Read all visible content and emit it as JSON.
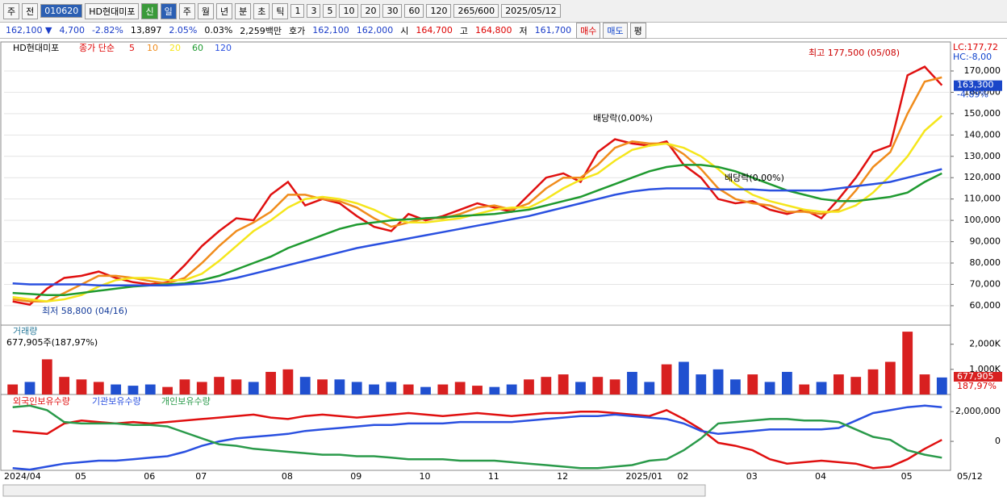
{
  "toolbar": {
    "buttons": [
      "주",
      "전"
    ],
    "code": "010620",
    "name": "HD현대미포",
    "tag": "신",
    "periods": [
      "일",
      "주",
      "월",
      "년",
      "분",
      "초",
      "틱"
    ],
    "intervals": [
      "1",
      "3",
      "5",
      "10",
      "20",
      "30",
      "60",
      "120"
    ],
    "count": "265/600",
    "date": "2025/05/12"
  },
  "quote": {
    "items": [
      "162,100 ▼",
      "4,700",
      "-2.82%",
      "13,897",
      "2.05%",
      "0.03%",
      "2,259백만",
      "호가",
      "162,100",
      "162,000",
      "시",
      "164,700",
      "고",
      "164,800",
      "저",
      "161,700"
    ],
    "buttons": [
      "매수",
      "매도",
      "평"
    ]
  },
  "chart_data": [
    {
      "type": "line",
      "title": "HD현대미포",
      "subtitle": "종가 단순",
      "categories": [
        "2024/04",
        null,
        null,
        null,
        "05",
        null,
        null,
        null,
        "06",
        null,
        null,
        "07",
        null,
        null,
        null,
        null,
        "08",
        null,
        null,
        null,
        "09",
        null,
        null,
        null,
        "10",
        null,
        null,
        null,
        "11",
        null,
        null,
        null,
        "12",
        null,
        null,
        null,
        "2025/01",
        null,
        null,
        "02",
        null,
        null,
        null,
        "03",
        null,
        null,
        null,
        "04",
        null,
        null,
        null,
        null,
        "05",
        null,
        null
      ],
      "series": [
        {
          "name": "5",
          "color": "#e01010",
          "values": [
            62000,
            60500,
            68000,
            73000,
            74000,
            76000,
            73000,
            71000,
            70000,
            71000,
            79000,
            88000,
            95000,
            101000,
            100000,
            112000,
            118000,
            107000,
            110000,
            108000,
            102000,
            97000,
            95000,
            103000,
            100000,
            102000,
            105000,
            108000,
            106000,
            104000,
            112000,
            120000,
            122000,
            118000,
            132000,
            138000,
            136000,
            135000,
            137000,
            126000,
            120000,
            110000,
            108000,
            109000,
            105000,
            103000,
            105000,
            101000,
            110000,
            120000,
            132000,
            135000,
            168000,
            172000,
            163300
          ]
        },
        {
          "name": "10",
          "color": "#f08c1c",
          "values": [
            63000,
            62000,
            62000,
            66000,
            70000,
            74000,
            74000,
            73000,
            71500,
            70500,
            73000,
            80000,
            88000,
            95000,
            99000,
            104000,
            112000,
            112000,
            110000,
            109000,
            106000,
            101000,
            97000,
            99000,
            101000,
            101000,
            103000,
            106000,
            107000,
            105000,
            108000,
            115000,
            120000,
            120000,
            126000,
            134000,
            137000,
            136000,
            136000,
            131000,
            124000,
            115000,
            110000,
            108000,
            107000,
            104000,
            104000,
            103000,
            105000,
            114000,
            125000,
            132000,
            150000,
            165000,
            167000
          ]
        },
        {
          "name": "20",
          "color": "#f5e61c",
          "values": [
            64000,
            63000,
            62000,
            63000,
            65000,
            69000,
            72000,
            73000,
            73000,
            72000,
            72000,
            75000,
            81000,
            88000,
            95000,
            100000,
            106000,
            110000,
            111000,
            110000,
            108000,
            105000,
            101000,
            99000,
            99000,
            100000,
            101000,
            103000,
            105000,
            106000,
            106000,
            110000,
            115000,
            119000,
            122000,
            128000,
            133000,
            135000,
            136000,
            134000,
            130000,
            124000,
            117000,
            112000,
            109000,
            107000,
            105000,
            104000,
            104000,
            107000,
            113000,
            121000,
            130000,
            142000,
            149000
          ]
        },
        {
          "name": "60",
          "color": "#1f9a30",
          "values": [
            66000,
            65500,
            65000,
            65000,
            66000,
            67000,
            68000,
            69000,
            69500,
            70000,
            70500,
            72000,
            74000,
            77000,
            80000,
            83000,
            87000,
            90000,
            93000,
            96000,
            98000,
            99000,
            100000,
            100500,
            101000,
            101500,
            102000,
            102500,
            103000,
            104000,
            105000,
            107000,
            109000,
            111000,
            114000,
            117000,
            120000,
            123000,
            125000,
            126000,
            126000,
            125000,
            123000,
            120000,
            117000,
            114000,
            112000,
            110000,
            109000,
            109000,
            110000,
            111000,
            113000,
            118000,
            122000
          ]
        },
        {
          "name": "120",
          "color": "#2a50e0",
          "values": [
            70500,
            70000,
            70000,
            70000,
            70000,
            69500,
            69500,
            69500,
            69500,
            69500,
            70000,
            70500,
            71500,
            73000,
            75000,
            77000,
            79000,
            81000,
            83000,
            85000,
            87000,
            88500,
            90000,
            91500,
            93000,
            94500,
            96000,
            97500,
            99000,
            100500,
            102000,
            104000,
            106000,
            108000,
            110000,
            112000,
            113500,
            114500,
            115000,
            115000,
            115000,
            114500,
            114500,
            114500,
            114000,
            114000,
            114000,
            114000,
            115000,
            116000,
            117000,
            118000,
            120000,
            122000,
            124000
          ]
        }
      ],
      "ylim": [
        50900,
        183600
      ],
      "yticks": [
        {
          "value": 60000,
          "label": "60,000"
        },
        {
          "value": 70000,
          "label": "70,000"
        },
        {
          "value": 80000,
          "label": "80,000"
        },
        {
          "value": 90000,
          "label": "90,000"
        },
        {
          "value": 100000,
          "label": "100,000"
        },
        {
          "value": 110000,
          "label": "110,000"
        },
        {
          "value": 120000,
          "label": "120,000"
        },
        {
          "value": 130000,
          "label": "130,000"
        },
        {
          "value": 140000,
          "label": "140,000"
        },
        {
          "value": 150000,
          "label": "150,000"
        },
        {
          "value": 160000,
          "label": "160,000"
        },
        {
          "value": 170000,
          "label": "170,000"
        }
      ],
      "grid": true,
      "annotations": [
        {
          "text": "최고 177,500 (05/08)",
          "value": 177500
        },
        {
          "text": "최저 58,800 (04/16)",
          "value": 58800
        },
        {
          "text": "배당락(0,00%)"
        },
        {
          "text": "배당락(0,00%)"
        }
      ],
      "right_labels": [
        "LC:177,72",
        "HC:-8,00"
      ],
      "last_label": "163,300",
      "change_label": "-4.89%",
      "x_end_label": "05/12"
    },
    {
      "type": "bar",
      "title": "거래량",
      "subtitle": "677,905주(187,97%)",
      "values": [
        400000,
        500000,
        1400000,
        700000,
        600000,
        500000,
        400000,
        350000,
        400000,
        300000,
        600000,
        500000,
        700000,
        600000,
        500000,
        900000,
        1000000,
        700000,
        600000,
        600000,
        500000,
        400000,
        500000,
        400000,
        300000,
        400000,
        500000,
        350000,
        300000,
        400000,
        600000,
        700000,
        800000,
        500000,
        700000,
        600000,
        900000,
        500000,
        1200000,
        1300000,
        800000,
        1000000,
        600000,
        800000,
        500000,
        900000,
        400000,
        500000,
        800000,
        700000,
        1000000,
        1300000,
        2500000,
        800000,
        677905
      ],
      "up_color": "#d82020",
      "down_color": "#2050d0",
      "ylim": [
        0,
        2760000
      ],
      "yticks": [
        {
          "value": 1000000,
          "label": "1,000K"
        },
        {
          "value": 2000000,
          "label": "2,000K"
        }
      ],
      "last_label": "677,905",
      "ratio_label": "187,97%"
    },
    {
      "type": "line",
      "series": [
        {
          "name": "외국인보유수량",
          "color": "#e01010",
          "values": [
            700000,
            600000,
            500000,
            1200000,
            1400000,
            1300000,
            1200000,
            1300000,
            1200000,
            1300000,
            1400000,
            1500000,
            1600000,
            1700000,
            1800000,
            1600000,
            1500000,
            1700000,
            1800000,
            1700000,
            1600000,
            1700000,
            1800000,
            1900000,
            1800000,
            1700000,
            1800000,
            1900000,
            1800000,
            1700000,
            1800000,
            1900000,
            1900000,
            2000000,
            2000000,
            1900000,
            1800000,
            1700000,
            2100000,
            1500000,
            800000,
            -100000,
            -300000,
            -600000,
            -1200000,
            -1500000,
            -1400000,
            -1300000,
            -1400000,
            -1500000,
            -1800000,
            -1700000,
            -1200000,
            -500000,
            100000
          ]
        },
        {
          "name": "기관보유수량",
          "color": "#2a50e0",
          "values": [
            -1800000,
            -1900000,
            -1700000,
            -1500000,
            -1400000,
            -1300000,
            -1300000,
            -1200000,
            -1100000,
            -1000000,
            -700000,
            -300000,
            0,
            200000,
            300000,
            400000,
            500000,
            700000,
            800000,
            900000,
            1000000,
            1100000,
            1100000,
            1200000,
            1200000,
            1200000,
            1300000,
            1300000,
            1300000,
            1300000,
            1400000,
            1500000,
            1600000,
            1700000,
            1700000,
            1800000,
            1700000,
            1600000,
            1500000,
            1200000,
            700000,
            500000,
            600000,
            700000,
            800000,
            800000,
            800000,
            800000,
            900000,
            1400000,
            1900000,
            2100000,
            2300000,
            2400000,
            2300000
          ]
        },
        {
          "name": "개인보유수량",
          "color": "#2a9a4a",
          "values": [
            2300000,
            2400000,
            2100000,
            1300000,
            1200000,
            1200000,
            1200000,
            1100000,
            1100000,
            1000000,
            600000,
            200000,
            -200000,
            -300000,
            -500000,
            -600000,
            -700000,
            -800000,
            -900000,
            -900000,
            -1000000,
            -1000000,
            -1100000,
            -1200000,
            -1200000,
            -1200000,
            -1300000,
            -1300000,
            -1300000,
            -1400000,
            -1500000,
            -1600000,
            -1700000,
            -1800000,
            -1800000,
            -1700000,
            -1600000,
            -1300000,
            -1200000,
            -600000,
            200000,
            1200000,
            1300000,
            1400000,
            1500000,
            1500000,
            1400000,
            1400000,
            1300000,
            800000,
            300000,
            100000,
            -600000,
            -900000,
            -1100000
          ]
        }
      ],
      "ylim": [
        -1950000,
        3150000
      ],
      "yticks": [
        0,
        {
          "value": 2000000,
          "label": "2,000,000"
        }
      ]
    }
  ]
}
